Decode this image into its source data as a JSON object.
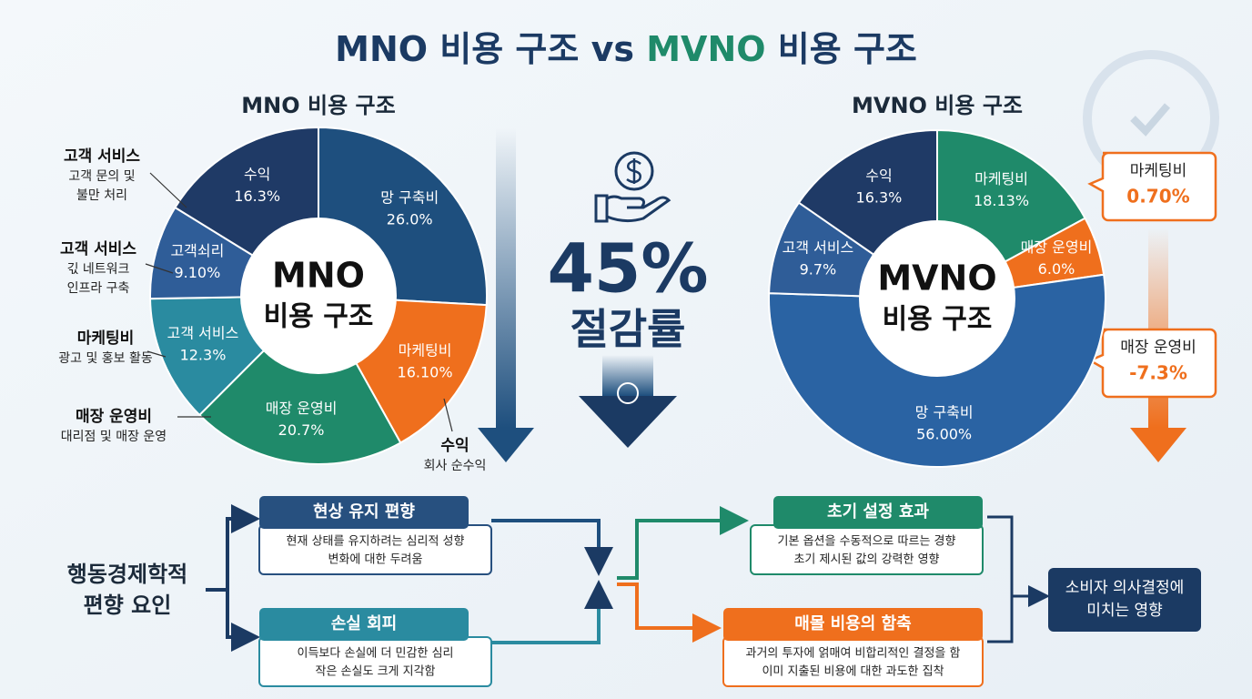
{
  "title": {
    "parts": [
      "MNO 비용 구조",
      "vs",
      "MVNO",
      "비용 구조"
    ]
  },
  "chart_data": [
    {
      "type": "pie",
      "title": "MNO 비용 구조",
      "center_label": [
        "MNO",
        "비용 구조"
      ],
      "categories": [
        "망 구축비",
        "마케팅비",
        "매장 운영비",
        "고객 서비스",
        "고객쇠리",
        "수익"
      ],
      "values": [
        26,
        16.1,
        20.7,
        12.3,
        9.1,
        16.3
      ],
      "value_labels": [
        "26.0%",
        "16.10%",
        "20.7%",
        "12.3%",
        "9.10%",
        "16.3%"
      ],
      "colors": [
        "#1e4f7e",
        "#ef6f1d",
        "#1f8a6a",
        "#2a8ba0",
        "#2f5d98",
        "#1f3a66"
      ]
    },
    {
      "type": "pie",
      "title": "MVNO 비용 구조",
      "center_label": [
        "MVNO",
        "비용 구조"
      ],
      "categories": [
        "마케팅비",
        "매장 운영비",
        "망 구축비",
        "고객 서비스",
        "수익"
      ],
      "values": [
        18.13,
        6,
        56,
        9.7,
        16.3
      ],
      "value_labels": [
        "18.13%",
        "6.0%",
        "56.00%",
        "9.7%",
        "16.3%"
      ],
      "colors": [
        "#1f8a6a",
        "#ef6f1d",
        "#2a63a3",
        "#2f5d98",
        "#1f3a66"
      ]
    }
  ],
  "mno_annotations": [
    {
      "title": "고객 서비스",
      "desc": [
        "고객 문의 및",
        "불만 처리"
      ]
    },
    {
      "title": "고객 서비스",
      "desc": [
        "긳 네트워크",
        "인프라 구축"
      ]
    },
    {
      "title": "마케팅비",
      "desc": [
        "광고 및 홍보 활동"
      ]
    },
    {
      "title": "매장 운영비",
      "desc": [
        "대리점 및 매장 운영"
      ]
    },
    {
      "title": "수익",
      "desc": [
        "회사 순수익"
      ]
    }
  ],
  "savings": {
    "value": "45%",
    "label": "절감률"
  },
  "mvno_callouts": [
    {
      "title": "마케팅비",
      "value": "0.70%"
    },
    {
      "title": "매장 운영비",
      "value": "-7.3%"
    }
  ],
  "behavioral": {
    "label": [
      "행동경제학적",
      "편향 요인"
    ],
    "biases": [
      {
        "title": "현상 유지 편향",
        "desc": [
          "현재 상태를 유지하려는 심리적 성향",
          "변화에 대한 두려움"
        ]
      },
      {
        "title": "손실 회피",
        "desc": [
          "이득보다 손실에 더 민감한 심리",
          "작은 손실도 크게 지각함"
        ]
      },
      {
        "title": "초기 설정 효과",
        "desc": [
          "기본 옵션을 수동적으로 따르는 경향",
          "초기 제시된 값의 강력한 영향"
        ]
      },
      {
        "title": "매몰 비용의 함축",
        "desc": [
          "과거의 투자에 얽매여 비합리적인 결정을 함",
          "이미 지출된 비용에 대한 과도한 집착"
        ]
      }
    ],
    "outcome": [
      "소비자 의사결정에",
      "미치는 영향"
    ]
  }
}
